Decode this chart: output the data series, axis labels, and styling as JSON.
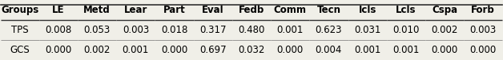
{
  "columns": [
    "Groups",
    "LE",
    "Metd",
    "Lear",
    "Part",
    "Eval",
    "Fedb",
    "Comm",
    "Tecn",
    "Icls",
    "Lcls",
    "Cspa",
    "Forb"
  ],
  "rows": [
    [
      "TPS",
      "0.008",
      "0.053",
      "0.003",
      "0.018",
      "0.317",
      "0.480",
      "0.001",
      "0.623",
      "0.031",
      "0.010",
      "0.002",
      "0.003"
    ],
    [
      "GCS",
      "0.000",
      "0.002",
      "0.001",
      "0.000",
      "0.697",
      "0.032",
      "0.000",
      "0.004",
      "0.001",
      "0.001",
      "0.000",
      "0.000"
    ]
  ],
  "background_color": "#f0efe8",
  "header_font_size": 8.5,
  "cell_font_size": 8.5,
  "figsize": [
    6.28,
    0.75
  ],
  "dpi": 100,
  "line_color_thick": "#333333",
  "line_color_thin": "#888888"
}
